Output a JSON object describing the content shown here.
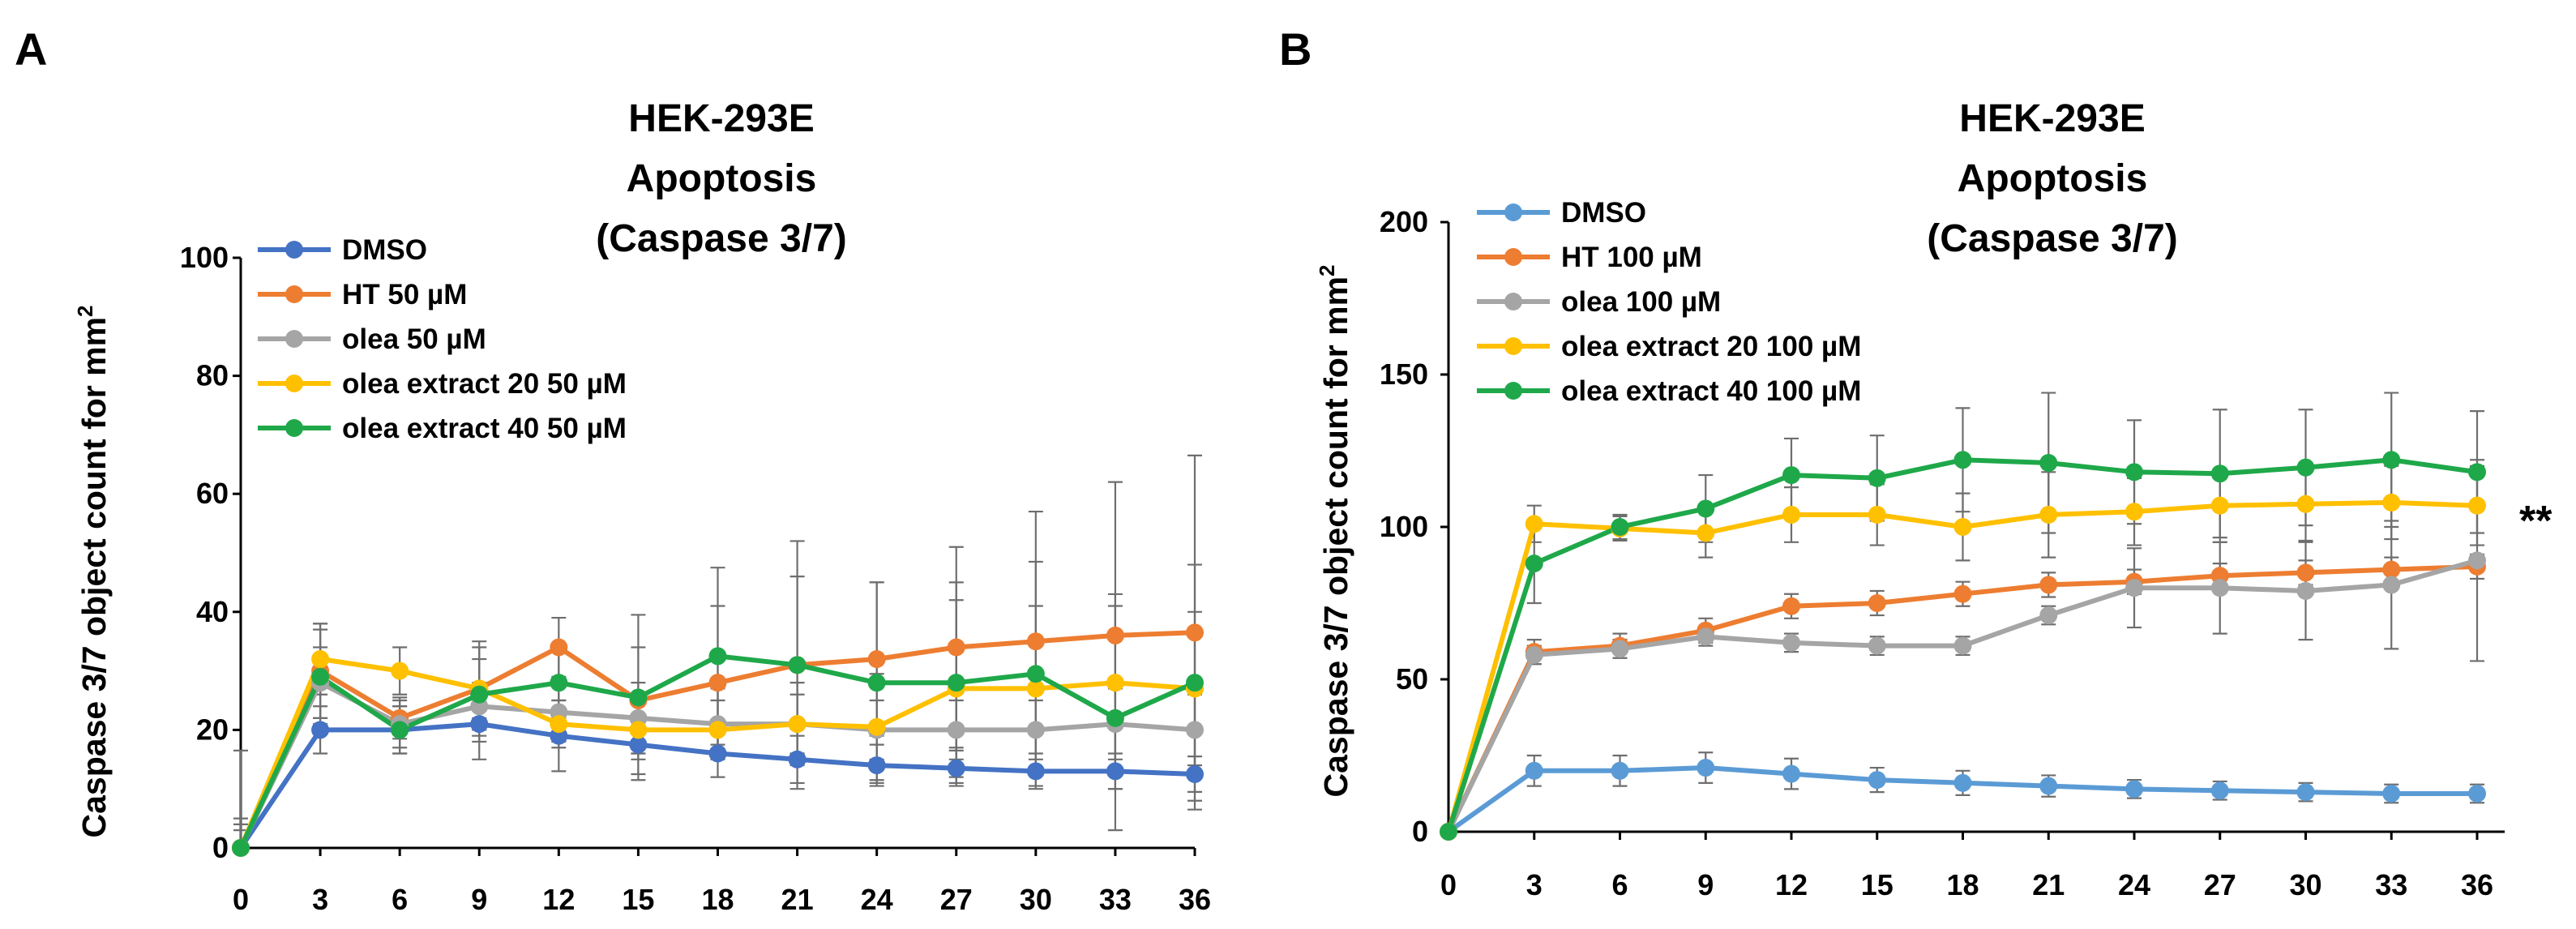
{
  "colors": {
    "A": [
      "#4472C4",
      "#ED7D31",
      "#A5A5A5",
      "#FFC000",
      "#1FA84A"
    ],
    "B": [
      "#5B9BD5",
      "#ED7D31",
      "#A5A5A5",
      "#FFC000",
      "#1FA84A"
    ]
  },
  "chart_data": [
    {
      "panel": "A",
      "type": "line",
      "title": [
        "HEK-293E",
        "Apoptosis",
        "(Caspase 3/7)"
      ],
      "xlabel": "",
      "ylabel": "Caspase 3/7 object count for mm",
      "ylabel_sup": "2",
      "x": [
        0,
        3,
        6,
        9,
        12,
        15,
        18,
        21,
        24,
        27,
        30,
        33,
        36
      ],
      "xlim": [
        0,
        36
      ],
      "ylim": [
        0,
        100
      ],
      "yticks": [
        0,
        20,
        40,
        60,
        80,
        100
      ],
      "legend_position": "top-left",
      "series": [
        {
          "name": "DMSO",
          "values": [
            0,
            20,
            20,
            21,
            19,
            17.5,
            16,
            15,
            14,
            13.5,
            13,
            13,
            12.5
          ],
          "errors": [
            0,
            4,
            4,
            6,
            6,
            5,
            4,
            4,
            3.5,
            3,
            3,
            3,
            3
          ]
        },
        {
          "name": "HT 50 µM",
          "values": [
            0,
            30,
            22,
            27,
            34,
            25,
            28,
            31,
            32,
            34,
            35,
            36,
            36.5
          ],
          "errors": [
            16.5,
            8,
            3.5,
            8,
            5,
            9,
            13,
            21,
            13,
            17,
            22,
            26,
            30
          ]
        },
        {
          "name": "olea 50 µM",
          "values": [
            0,
            28,
            21,
            24,
            23,
            22,
            21,
            21,
            20,
            20,
            20,
            21,
            20
          ],
          "errors": [
            5,
            6,
            4,
            4,
            5,
            6,
            6,
            5,
            5,
            5,
            5,
            6,
            6
          ]
        },
        {
          "name": "olea extract 20 50 µM",
          "values": [
            0,
            32,
            30,
            27,
            21,
            20,
            20,
            21,
            20.5,
            27,
            27,
            28,
            27
          ],
          "errors": [
            4,
            6,
            4,
            5,
            4,
            5,
            5,
            7,
            9,
            15,
            14,
            15,
            13
          ]
        },
        {
          "name": "olea extract 40 50 µM",
          "values": [
            0,
            29,
            20,
            26,
            28,
            25.5,
            32.5,
            31,
            28,
            28,
            29.5,
            22,
            28
          ],
          "errors": [
            3,
            8,
            4,
            8,
            6,
            14,
            15,
            15,
            17,
            17,
            19,
            19,
            20
          ]
        }
      ]
    },
    {
      "panel": "B",
      "type": "line",
      "title": [
        "HEK-293E",
        "Apoptosis",
        "(Caspase 3/7)"
      ],
      "xlabel": "",
      "ylabel": "Caspase 3/7 object count for mm",
      "ylabel_sup": "2",
      "x": [
        0,
        3,
        6,
        9,
        12,
        15,
        18,
        21,
        24,
        27,
        30,
        33,
        36
      ],
      "xlim": [
        0,
        36
      ],
      "ylim": [
        0,
        200
      ],
      "yticks": [
        0,
        50,
        100,
        150,
        200
      ],
      "legend_position": "top-left",
      "annotation": "**",
      "series": [
        {
          "name": "DMSO",
          "values": [
            0,
            20,
            20,
            21,
            19,
            17,
            16,
            15,
            14,
            13.5,
            13,
            12.5,
            12.5
          ],
          "errors": [
            0,
            5,
            5,
            5,
            5,
            4,
            4,
            3.5,
            3,
            3,
            3,
            3,
            3
          ]
        },
        {
          "name": "HT 100 µM",
          "values": [
            0,
            59,
            61,
            66,
            74,
            75,
            78,
            81,
            82,
            84,
            85,
            86,
            87
          ],
          "errors": [
            0,
            4,
            4,
            4,
            4,
            4,
            4,
            4,
            4,
            4,
            4,
            4,
            4
          ]
        },
        {
          "name": "olea 100 µM",
          "values": [
            0,
            58,
            60,
            64,
            62,
            61,
            61,
            71,
            80,
            80,
            79,
            81,
            89
          ],
          "errors": [
            0,
            3,
            3,
            3,
            3,
            3,
            3,
            3,
            13,
            15,
            16,
            21,
            33
          ]
        },
        {
          "name": "olea extract 20 100 µM",
          "values": [
            0,
            101,
            99.5,
            98,
            104,
            104,
            100,
            104,
            105,
            107,
            107.5,
            108,
            107
          ],
          "errors": [
            0,
            6,
            4,
            8,
            9,
            10,
            11,
            14,
            11,
            12,
            12,
            12,
            13
          ]
        },
        {
          "name": "olea extract 40 100 µM",
          "values": [
            0,
            88,
            100,
            106,
            117,
            116,
            122,
            121,
            118,
            117.5,
            119.5,
            122,
            118
          ],
          "errors": [
            0,
            13,
            4,
            11,
            12,
            14,
            17,
            23,
            17,
            21,
            19,
            22,
            20
          ]
        }
      ]
    }
  ]
}
